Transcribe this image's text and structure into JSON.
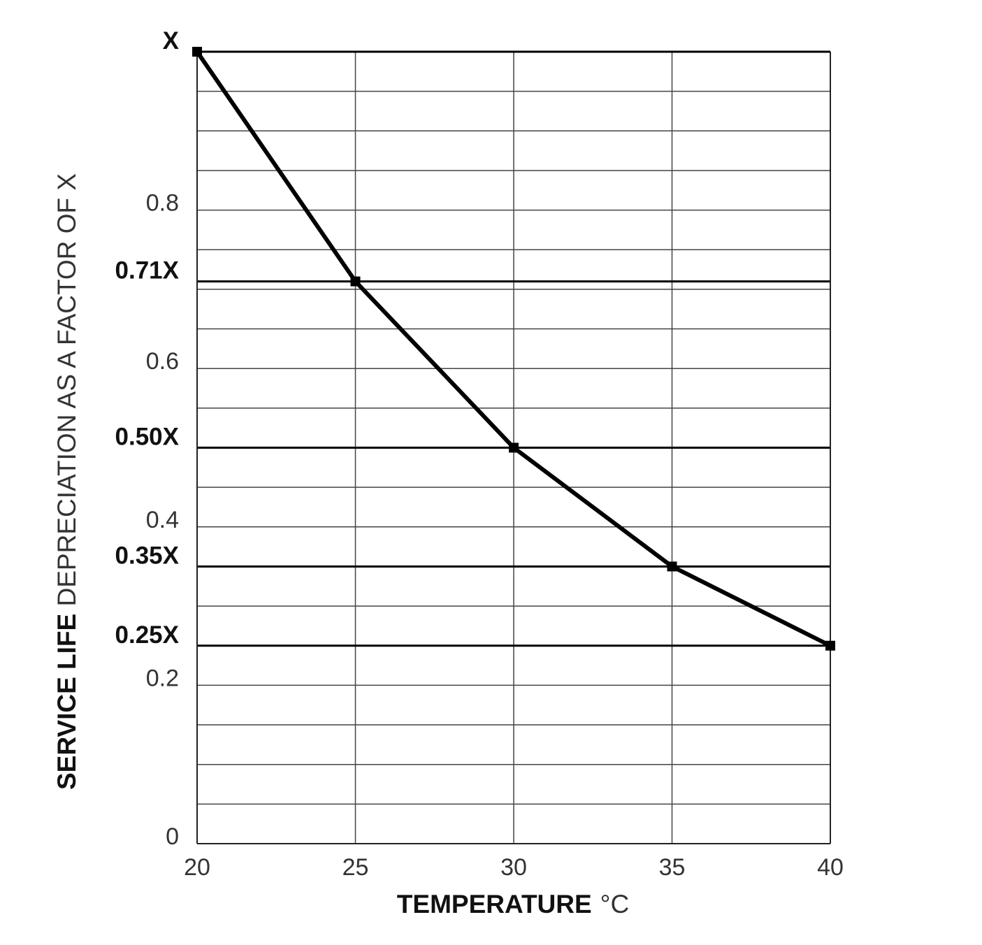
{
  "chart_data": {
    "type": "line",
    "xlabel_bold": "TEMPERATURE",
    "xlabel_unit": "°C",
    "ylabel_bold": "SERVICE LIFE",
    "ylabel_rest": " DEPRECIATION AS A FACTOR OF X",
    "xlim": [
      20,
      40
    ],
    "ylim": [
      0,
      1
    ],
    "x_ticks": [
      20,
      25,
      30,
      35,
      40
    ],
    "x_tick_labels": [
      "20",
      "25",
      "30",
      "35",
      "40"
    ],
    "y_ticks": [
      {
        "value": 0,
        "label": "0"
      },
      {
        "value": 0.2,
        "label": "0.2"
      },
      {
        "value": 0.4,
        "label": "0.4"
      },
      {
        "value": 0.6,
        "label": "0.6"
      },
      {
        "value": 0.8,
        "label": "0.8"
      }
    ],
    "y_marked_levels": [
      {
        "value": 1.0,
        "label": "X"
      },
      {
        "value": 0.71,
        "label": "0.71X"
      },
      {
        "value": 0.5,
        "label": "0.50X"
      },
      {
        "value": 0.35,
        "label": "0.35X"
      },
      {
        "value": 0.25,
        "label": "0.25X"
      }
    ],
    "grid": true,
    "grid_y_step": 0.05,
    "series": [
      {
        "x": [
          20,
          25,
          30,
          35,
          40
        ],
        "y": [
          1.0,
          0.71,
          0.5,
          0.35,
          0.25
        ]
      }
    ],
    "colors": {
      "line": "#000000",
      "grid": "#444444",
      "marker": "#000000"
    }
  }
}
